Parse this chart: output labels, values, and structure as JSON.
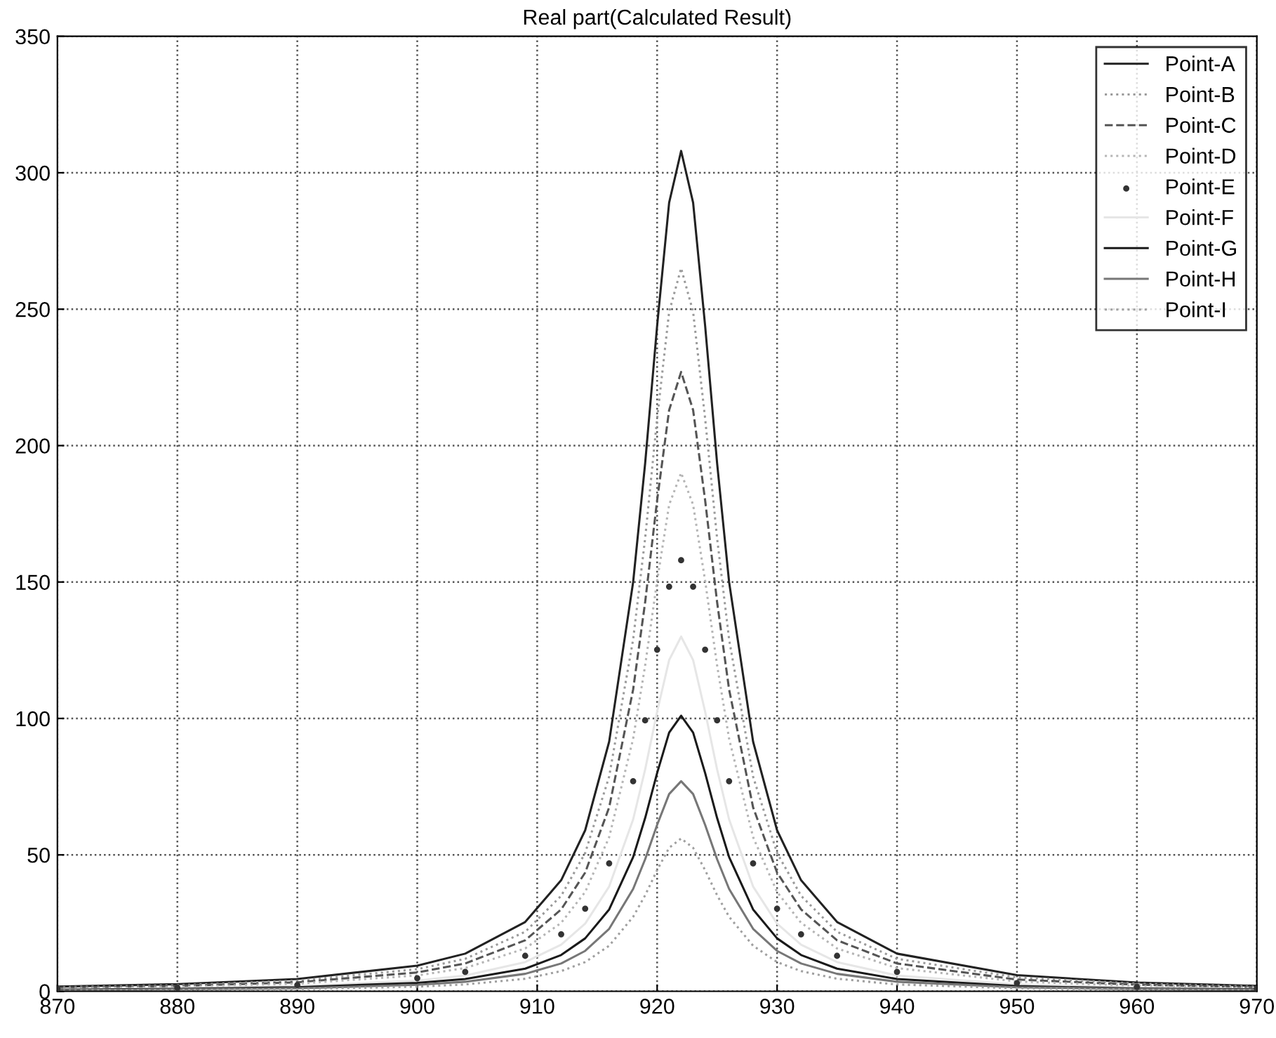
{
  "chart_data": {
    "type": "line",
    "title": "Real part(Calculated Result)",
    "x": [
      870,
      880,
      890,
      900,
      904,
      909,
      912,
      914,
      916,
      918,
      919,
      920,
      921,
      922,
      923,
      924,
      925,
      926,
      928,
      930,
      932,
      935,
      940,
      950,
      960,
      970
    ],
    "series": [
      {
        "name": "Point-A",
        "color": "#222222",
        "line_style": "solid",
        "values": [
          1.7,
          2.6,
          4.5,
          9.4,
          13.8,
          25.4,
          40.7,
          59,
          91.5,
          150,
          193.5,
          244,
          289,
          308,
          289,
          244,
          193.5,
          150,
          91.5,
          59,
          40.7,
          25.4,
          13.8,
          5.9,
          3.2,
          2.0
        ]
      },
      {
        "name": "Point-B",
        "color": "#9a9a9a",
        "line_style": "dotted",
        "values": [
          1.5,
          2.2,
          3.9,
          8.1,
          11.9,
          21.8,
          35,
          50.7,
          78.7,
          129,
          166,
          210,
          249,
          265,
          249,
          210,
          166,
          129,
          78.7,
          50.7,
          35,
          21.8,
          11.9,
          5.1,
          2.8,
          1.7
        ]
      },
      {
        "name": "Point-C",
        "color": "#555555",
        "line_style": "dashed",
        "values": [
          1.3,
          1.9,
          3.3,
          6.9,
          10.2,
          18.7,
          30,
          43.5,
          67.4,
          110.6,
          142.6,
          180,
          213,
          227,
          213,
          180,
          142.6,
          110.6,
          67.4,
          43.5,
          30,
          18.7,
          10.2,
          4.3,
          2.4,
          1.5
        ]
      },
      {
        "name": "Point-D",
        "color": "#b5b5b5",
        "line_style": "dotted",
        "values": [
          1.0,
          1.6,
          2.8,
          5.8,
          8.5,
          15.7,
          25.1,
          36.4,
          56.5,
          92.6,
          119.4,
          150.5,
          178.3,
          190,
          178.3,
          150.5,
          119.4,
          92.6,
          56.5,
          36.4,
          25.1,
          15.7,
          8.5,
          3.6,
          2.0,
          1.2
        ]
      },
      {
        "name": "Point-E",
        "type": "scatter",
        "color": "#333333",
        "marker": "circle",
        "values": [
          0.9,
          1.3,
          2.3,
          4.8,
          7.1,
          13,
          20.9,
          30.3,
          46.9,
          77,
          99.3,
          125.2,
          148.3,
          158,
          148.3,
          125.2,
          99.3,
          77,
          46.9,
          30.3,
          20.9,
          13,
          7.1,
          3,
          1.6,
          1.0
        ]
      },
      {
        "name": "Point-F",
        "color": "#e6e6e6",
        "line_style": "solid",
        "values": [
          0.7,
          1.1,
          1.9,
          3.9,
          5.8,
          10.7,
          17.1,
          24.8,
          38.4,
          63,
          81.3,
          102.5,
          121.4,
          130,
          121.4,
          102.5,
          81.3,
          63,
          38.4,
          24.8,
          17.1,
          10.7,
          5.8,
          2.5,
          1.3,
          0.8
        ]
      },
      {
        "name": "Point-G",
        "color": "#1a1a1a",
        "line_style": "solid",
        "values": [
          0.6,
          0.9,
          1.5,
          3.1,
          4.5,
          8.3,
          13.3,
          19.4,
          30,
          49.2,
          63.5,
          80,
          94.8,
          101,
          94.8,
          80,
          63.5,
          49.2,
          30,
          19.4,
          13.3,
          8.3,
          4.5,
          1.9,
          1.0,
          0.7
        ]
      },
      {
        "name": "Point-H",
        "color": "#777777",
        "line_style": "solid",
        "values": [
          0.4,
          0.7,
          1.1,
          2.4,
          3.5,
          6.4,
          10.2,
          14.8,
          22.9,
          37.5,
          48.4,
          61,
          72.3,
          77,
          72.3,
          61,
          48.4,
          37.5,
          22.9,
          14.8,
          10.2,
          6.4,
          3.5,
          1.5,
          0.8,
          0.5
        ]
      },
      {
        "name": "Point-I",
        "color": "#a0a0a0",
        "line_style": "dotted",
        "values": [
          0.3,
          0.5,
          0.8,
          1.7,
          2.5,
          4.6,
          7.4,
          10.7,
          16.7,
          27.3,
          35.2,
          44.4,
          52.6,
          56,
          52.6,
          44.4,
          35.2,
          27.3,
          16.7,
          10.7,
          7.4,
          4.6,
          2.5,
          1.1,
          0.6,
          0.4
        ]
      }
    ],
    "xlim": [
      870,
      970
    ],
    "xticks": [
      870,
      880,
      890,
      900,
      910,
      920,
      930,
      940,
      950,
      960,
      970
    ],
    "ylim": [
      0,
      350
    ],
    "yticks": [
      0,
      50,
      100,
      150,
      200,
      250,
      300,
      350
    ],
    "grid": true,
    "legend": "top right"
  }
}
